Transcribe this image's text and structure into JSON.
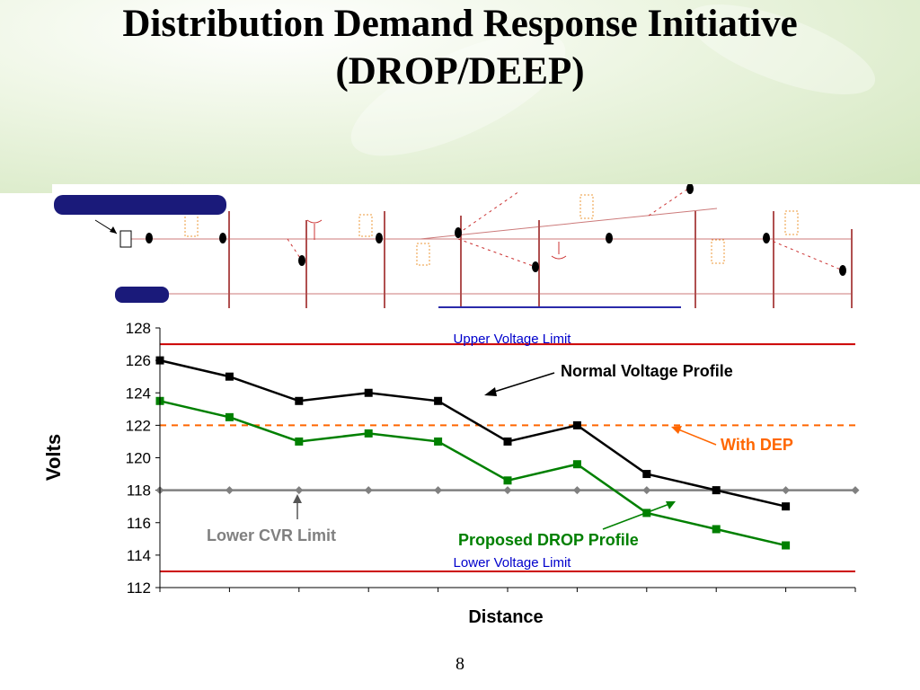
{
  "slide": {
    "title_line1": "Distribution Demand Response Initiative",
    "title_line2": "(DROP/DEEP)",
    "page_number": "8"
  },
  "colors": {
    "normal": "#000000",
    "drop": "#008000",
    "dep": "#ff6600",
    "limit": "#cc0000",
    "cvr": "#808080",
    "limit_text": "#0000cc"
  },
  "chart_data": {
    "type": "line",
    "xlabel": "Distance",
    "ylabel": "Volts",
    "ylim": [
      112,
      128
    ],
    "yticks": [
      112,
      114,
      116,
      118,
      120,
      122,
      124,
      126,
      128
    ],
    "x": [
      1,
      2,
      3,
      4,
      5,
      6,
      7,
      8,
      9,
      10
    ],
    "grid": false,
    "series": [
      {
        "name": "Normal Voltage Profile",
        "values": [
          126,
          125,
          123.5,
          124,
          123.5,
          121,
          122,
          119,
          118,
          117
        ]
      },
      {
        "name": "Proposed DROP Profile",
        "values": [
          123.5,
          122.5,
          121,
          121.5,
          121,
          118.6,
          119.6,
          116.6,
          115.6,
          114.6
        ]
      }
    ],
    "reference_lines": [
      {
        "name": "Upper Voltage Limit",
        "value": 127
      },
      {
        "name": "Lower Voltage Limit",
        "value": 113
      },
      {
        "name": "With DEP",
        "value": 122
      },
      {
        "name": "Lower CVR Limit",
        "value": 118
      }
    ]
  }
}
